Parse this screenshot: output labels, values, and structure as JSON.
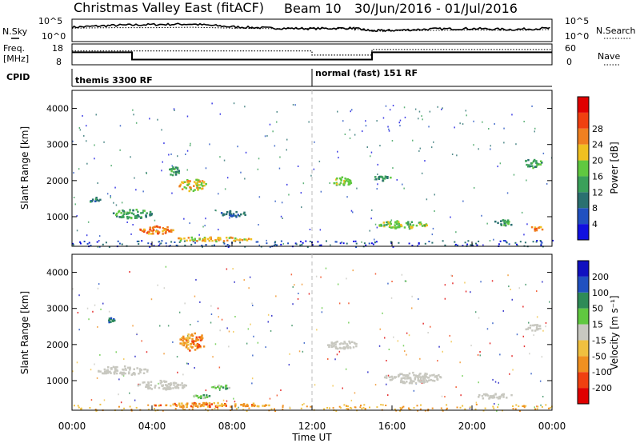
{
  "header": {
    "station": "Christmas Valley East (fitACF)",
    "beam": "Beam 10",
    "daterange": "30/Jun/2016 - 01/Jul/2016"
  },
  "labels": {
    "nsky": "N.Sky",
    "nsearch": "N.Search",
    "freq": "Freq.",
    "freq_unit": "[MHz]",
    "nave": "Nave",
    "cpid": "CPID",
    "cpid_left": "themis 3300 RF",
    "cpid_right": "normal (fast) 151 RF",
    "ylabel": "Slant Range [km]",
    "xlabel": "Time UT",
    "power_label": "Power [dB]",
    "velocity_label": "Velocity [m s⁻¹]",
    "noise_top": "10^5",
    "noise_bot": "10^0",
    "freq_top": "18",
    "freq_bot": "8",
    "nave_top": "60",
    "nave_bot": "0"
  },
  "chart_data": [
    {
      "type": "line",
      "panel": "noise",
      "series": [
        {
          "name": "N.Sky",
          "x": [
            0,
            2,
            4,
            6,
            8,
            10,
            12,
            14,
            15,
            16,
            18,
            20,
            22,
            24
          ],
          "values": [
            3.2,
            3.6,
            3.8,
            3.9,
            3.3,
            3.0,
            2.9,
            3.0,
            2.4,
            2.5,
            2.8,
            2.9,
            2.7,
            3.0
          ]
        },
        {
          "name": "N.Search",
          "x": [
            0,
            2,
            4,
            6,
            8,
            10,
            12,
            14,
            15,
            16,
            18,
            20,
            22,
            24
          ],
          "values": [
            3.0,
            3.1,
            3.1,
            3.2,
            3.0,
            2.9,
            2.9,
            2.9,
            2.3,
            2.4,
            2.5,
            2.6,
            2.5,
            2.7
          ]
        }
      ],
      "ylim": [
        0,
        5
      ]
    },
    {
      "type": "line",
      "panel": "freq",
      "series": [
        {
          "name": "Freq.",
          "x": [
            0,
            3,
            3,
            15,
            15,
            24
          ],
          "values": [
            14,
            14,
            10.5,
            10.5,
            14,
            14
          ]
        },
        {
          "name": "Nave",
          "x": [
            0,
            3,
            3,
            12,
            12,
            15,
            15,
            24
          ],
          "values": [
            40,
            40,
            40,
            40,
            28,
            28,
            44,
            44
          ]
        }
      ],
      "ylim": [
        8,
        18
      ]
    },
    {
      "type": "heatmap",
      "panel": "power",
      "title": "",
      "ylabel": "Slant Range [km]",
      "ylim": [
        180,
        4500
      ],
      "xlim": [
        0,
        24
      ],
      "yticks": [
        1000,
        2000,
        3000,
        4000
      ],
      "colorbar": {
        "label": "Power [dB]",
        "ticks": [
          4,
          8,
          12,
          16,
          20,
          24,
          28
        ]
      },
      "blobs": [
        {
          "t": 1.0,
          "r": 1500,
          "dt": 0.8,
          "dr": 120,
          "v": 8
        },
        {
          "t": 3.0,
          "r": 1100,
          "dt": 2.0,
          "dr": 250,
          "v": 12
        },
        {
          "t": 4.2,
          "r": 650,
          "dt": 1.8,
          "dr": 220,
          "v": 26
        },
        {
          "t": 6.0,
          "r": 1900,
          "dt": 1.4,
          "dr": 350,
          "v": 20
        },
        {
          "t": 5.0,
          "r": 2300,
          "dt": 0.7,
          "dr": 250,
          "v": 12
        },
        {
          "t": 8.0,
          "r": 1100,
          "dt": 1.3,
          "dr": 180,
          "v": 10
        },
        {
          "t": 7.0,
          "r": 400,
          "dt": 4.0,
          "dr": 120,
          "v": 20
        },
        {
          "t": 13.5,
          "r": 2000,
          "dt": 1.0,
          "dr": 250,
          "v": 18
        },
        {
          "t": 15.5,
          "r": 2100,
          "dt": 0.8,
          "dr": 200,
          "v": 14
        },
        {
          "t": 16.5,
          "r": 800,
          "dt": 2.5,
          "dr": 220,
          "v": 16
        },
        {
          "t": 21.5,
          "r": 850,
          "dt": 1.0,
          "dr": 180,
          "v": 14
        },
        {
          "t": 23.0,
          "r": 2500,
          "dt": 1.0,
          "dr": 250,
          "v": 12
        },
        {
          "t": 23.2,
          "r": 700,
          "dt": 0.6,
          "dr": 150,
          "v": 24
        }
      ]
    },
    {
      "type": "heatmap",
      "panel": "velocity",
      "title": "",
      "ylabel": "Slant Range [km]",
      "xlabel": "Time UT",
      "ylim": [
        180,
        4500
      ],
      "xlim": [
        0,
        24
      ],
      "yticks": [
        1000,
        2000,
        3000,
        4000
      ],
      "xticks": [
        "00:00",
        "04:00",
        "08:00",
        "12:00",
        "16:00",
        "20:00",
        "00:00"
      ],
      "colorbar": {
        "label": "Velocity [m s⁻¹]",
        "ticks": [
          -200,
          -100,
          -50,
          -15,
          15,
          50,
          100,
          200
        ]
      },
      "blobs": [
        {
          "t": 2.5,
          "r": 1300,
          "dt": 2.5,
          "dr": 250,
          "v": 0
        },
        {
          "t": 4.5,
          "r": 900,
          "dt": 2.5,
          "dr": 250,
          "v": 0
        },
        {
          "t": 7.5,
          "r": 850,
          "dt": 1.0,
          "dr": 120,
          "v": 40
        },
        {
          "t": 6.5,
          "r": 600,
          "dt": 1.0,
          "dr": 120,
          "v": 40
        },
        {
          "t": 6.0,
          "r": 2100,
          "dt": 1.3,
          "dr": 500,
          "v": -60
        },
        {
          "t": 7.0,
          "r": 350,
          "dt": 6.0,
          "dr": 120,
          "v": -60
        },
        {
          "t": 13.5,
          "r": 2000,
          "dt": 1.5,
          "dr": 250,
          "v": 0
        },
        {
          "t": 17.0,
          "r": 1100,
          "dt": 3.0,
          "dr": 300,
          "v": 0
        },
        {
          "t": 21.0,
          "r": 600,
          "dt": 2.0,
          "dr": 150,
          "v": 0
        },
        {
          "t": 23.0,
          "r": 2500,
          "dt": 0.8,
          "dr": 220,
          "v": 0
        },
        {
          "t": 2.0,
          "r": 2700,
          "dt": 0.6,
          "dr": 150,
          "v": 60
        }
      ]
    }
  ],
  "colors": {
    "power_scale": [
      "#1010e0",
      "#2050c0",
      "#2a7070",
      "#3aa05a",
      "#60c840",
      "#f0c020",
      "#f08020",
      "#f04010",
      "#e00000"
    ],
    "velocity_scale": [
      "#e00000",
      "#f04010",
      "#f09020",
      "#f0c040",
      "#c8c8c0",
      "#60c840",
      "#2e8b57",
      "#2050c0",
      "#1010c0"
    ],
    "ground_scatter": "#bbbbbb"
  }
}
